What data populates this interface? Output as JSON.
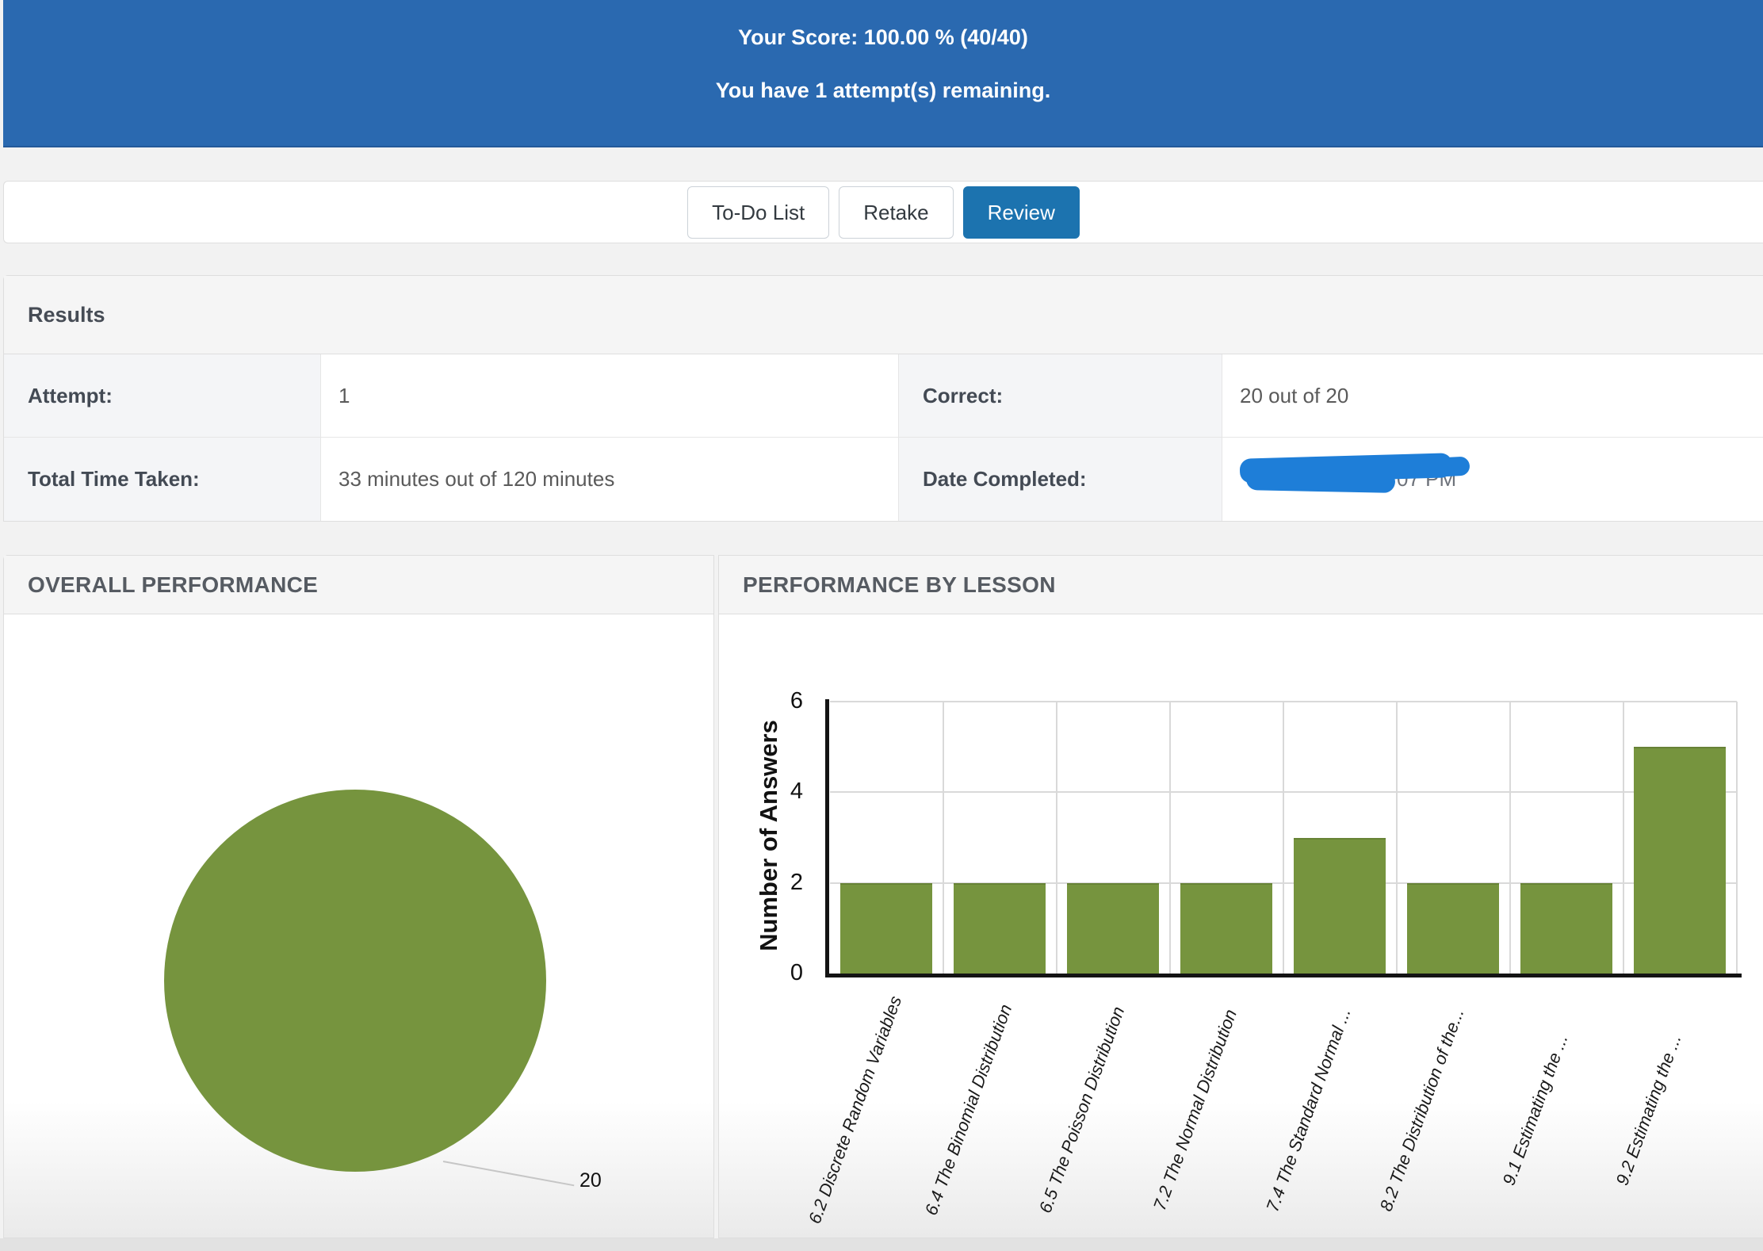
{
  "banner": {
    "score_line": "Your Score: 100.00 % (40/40)",
    "attempts_line": "You have 1 attempt(s) remaining."
  },
  "toolbar": {
    "buttons": [
      {
        "label": "To-Do List",
        "primary": false
      },
      {
        "label": "Retake",
        "primary": false
      },
      {
        "label": "Review",
        "primary": true
      }
    ]
  },
  "results": {
    "title": "Results",
    "rows": [
      {
        "label_left": "Attempt:",
        "value_left": "1",
        "label_right": "Correct:",
        "value_right": "20 out of 20"
      },
      {
        "label_left": "Total Time Taken:",
        "value_left": "33 minutes out of 120 minutes",
        "label_right": "Date Completed:",
        "value_right_redacted": true,
        "value_right_visible_fragment": "07 PM"
      }
    ]
  },
  "panels": {
    "overall_title": "OVERALL PERFORMANCE",
    "by_lesson_title": "PERFORMANCE BY LESSON"
  },
  "chart_data": [
    {
      "type": "pie",
      "title": "OVERALL PERFORMANCE",
      "slices": [
        {
          "label": "20",
          "value": 20,
          "color": "#76943e"
        }
      ],
      "data_label": "20",
      "legend_position": "none"
    },
    {
      "type": "bar",
      "title": "PERFORMANCE BY LESSON",
      "ylabel": "Number of Answers",
      "xlabel": "",
      "ylim": [
        0,
        6
      ],
      "yticks": [
        0,
        2,
        4,
        6
      ],
      "grid": true,
      "color": "#76943e",
      "categories": [
        "6.2 Discrete Random Variables",
        "6.4 The Binomial Distribution",
        "6.5 The Poisson Distribution",
        "7.2 The Normal Distribution",
        "7.4 The Standard Normal ...",
        "8.2 The Distribution of the...",
        "9.1 Estimating the ...",
        "9.2 Estimating the ..."
      ],
      "values": [
        2,
        2,
        2,
        2,
        3,
        2,
        2,
        5
      ]
    }
  ],
  "colors": {
    "banner_blue": "#2a69b0",
    "button_blue": "#1c73af",
    "series_green": "#76943e",
    "redaction_blue": "#1e7ed8",
    "page_bg": "#f2f2f2",
    "panel_header_bg": "#f5f5f5",
    "border": "#dedede",
    "label_cell_bg": "#f4f5f7",
    "grid_line": "#d9d9d9"
  }
}
